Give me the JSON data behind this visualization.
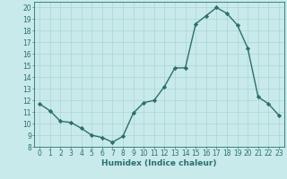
{
  "x": [
    0,
    1,
    2,
    3,
    4,
    5,
    6,
    7,
    8,
    9,
    10,
    11,
    12,
    13,
    14,
    15,
    16,
    17,
    18,
    19,
    20,
    21,
    22,
    23
  ],
  "y": [
    11.7,
    11.1,
    10.2,
    10.1,
    9.6,
    9.0,
    8.8,
    8.4,
    8.9,
    10.9,
    11.8,
    12.0,
    13.2,
    14.8,
    14.8,
    18.6,
    19.3,
    20.0,
    19.5,
    18.5,
    16.5,
    12.3,
    11.7,
    10.7
  ],
  "line_color": "#2d6e6e",
  "marker": "D",
  "markersize": 2.2,
  "linewidth": 1.0,
  "background_color": "#c8eaea",
  "grid_color": "#add4d4",
  "xlabel": "Humidex (Indice chaleur)",
  "xlabel_fontsize": 6.5,
  "tick_fontsize": 5.5,
  "ylim": [
    8,
    20.5
  ],
  "xlim": [
    -0.5,
    23.5
  ],
  "yticks": [
    8,
    9,
    10,
    11,
    12,
    13,
    14,
    15,
    16,
    17,
    18,
    19,
    20
  ],
  "xticks": [
    0,
    1,
    2,
    3,
    4,
    5,
    6,
    7,
    8,
    9,
    10,
    11,
    12,
    13,
    14,
    15,
    16,
    17,
    18,
    19,
    20,
    21,
    22,
    23
  ]
}
